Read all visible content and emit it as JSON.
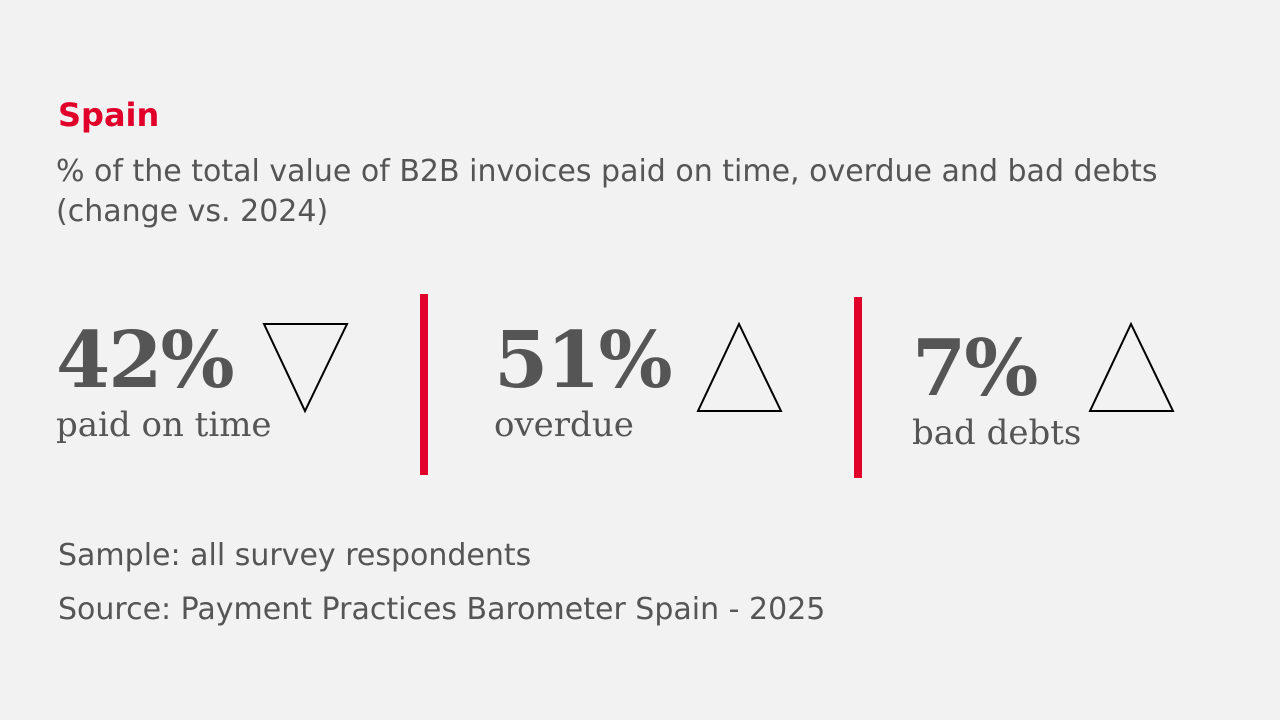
{
  "header": {
    "title": "Spain",
    "subtitle": "% of the total value of B2B invoices paid on time, overdue and bad debts (change vs. 2024)"
  },
  "stats": [
    {
      "value": "42%",
      "label": "paid on time",
      "change_direction": "down",
      "icon": "triangle-down-icon"
    },
    {
      "value": "51%",
      "label": "overdue",
      "change_direction": "up",
      "icon": "triangle-up-icon"
    },
    {
      "value": "7%",
      "label": "bad debts",
      "change_direction": "up",
      "icon": "triangle-up-icon"
    }
  ],
  "footer": {
    "sample": "Sample: all survey respondents",
    "source": "Source: Payment Practices Barometer Spain - 2025"
  },
  "colors": {
    "accent": "#e1002a",
    "text": "#555555",
    "background": "#f2f2f2"
  }
}
